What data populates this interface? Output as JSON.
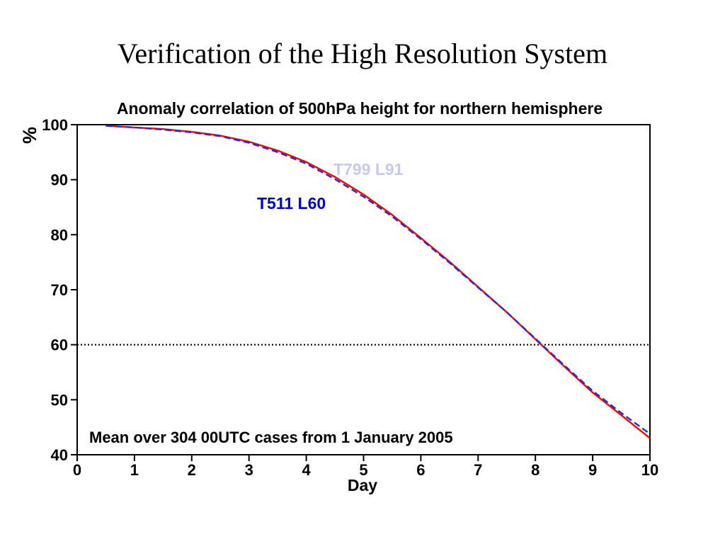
{
  "slide": {
    "title": "Verification of the High Resolution System"
  },
  "chart_data": {
    "type": "line",
    "title": "Anomaly correlation of 500hPa height for northern hemisphere",
    "xlabel": "Day",
    "ylabel": "%",
    "xlim": [
      0,
      10
    ],
    "ylim": [
      40,
      100
    ],
    "xticks": [
      "0",
      "1",
      "2",
      "3",
      "4",
      "5",
      "6",
      "7",
      "8",
      "9",
      "10"
    ],
    "yticks": [
      "40",
      "50",
      "60",
      "70",
      "80",
      "90",
      "100"
    ],
    "grid": false,
    "reference_line": {
      "y": 60,
      "style": "dotted"
    },
    "annotation": "Mean over 304 00UTC cases from 1 January 2005",
    "series": [
      {
        "name": "T799 L91",
        "color": "#ff0000",
        "line_style": "solid",
        "label_color": "#c8c8f0",
        "x": [
          0.5,
          1,
          1.5,
          2,
          2.5,
          3,
          3.5,
          4,
          4.5,
          5,
          5.5,
          6,
          6.5,
          7,
          7.5,
          8,
          8.5,
          9,
          9.5,
          10
        ],
        "y": [
          99.8,
          99.5,
          99.2,
          98.7,
          98.0,
          96.9,
          95.3,
          93.2,
          90.5,
          87.3,
          83.6,
          79.4,
          75.1,
          70.5,
          65.9,
          61.0,
          56.1,
          51.3,
          47.2,
          43.0
        ]
      },
      {
        "name": "T511 L60",
        "color": "#2a2ad0",
        "line_style": "dashed",
        "label_color": "#0000cc",
        "x": [
          0.5,
          1,
          1.5,
          2,
          2.5,
          3,
          3.5,
          4,
          4.5,
          5,
          5.5,
          6,
          6.5,
          7,
          7.5,
          8,
          8.5,
          9,
          9.5,
          10
        ],
        "y": [
          99.8,
          99.5,
          99.1,
          98.6,
          97.9,
          96.7,
          95.0,
          92.9,
          90.1,
          86.9,
          83.3,
          79.2,
          74.9,
          70.4,
          65.9,
          61.1,
          56.3,
          51.6,
          47.6,
          43.8
        ]
      }
    ]
  }
}
